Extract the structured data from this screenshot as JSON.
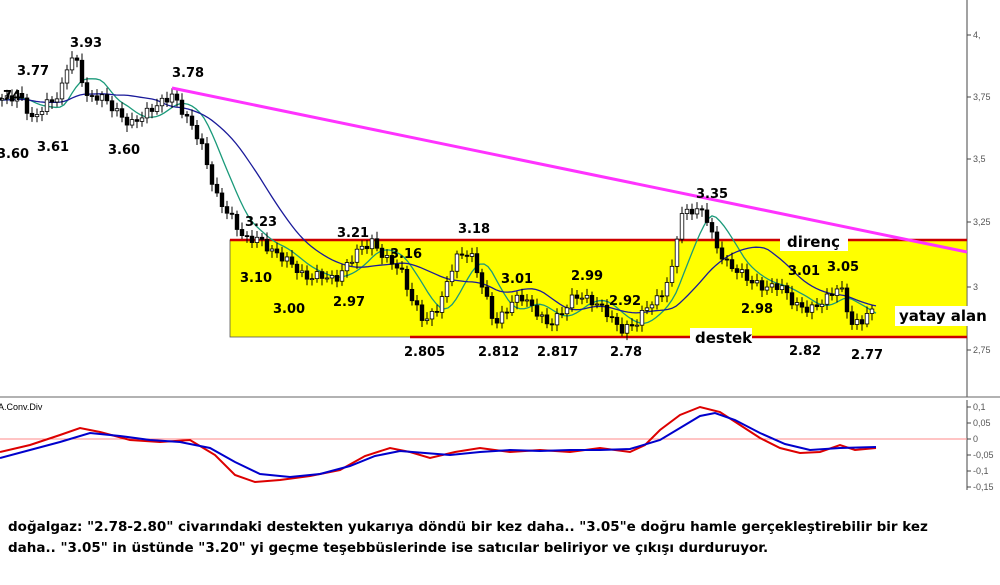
{
  "chart_data": [
    {
      "type": "candlestick",
      "title": "",
      "ylim": [
        2.7,
        4.12
      ],
      "y_ticks": [
        "4,",
        "3,75",
        "3,5",
        "3,25",
        "3",
        "2,75"
      ],
      "price_labels": [
        "3.93",
        "3.77",
        ".74",
        "3.60",
        "3.61",
        "3.60",
        "3.78",
        "3.23",
        "3.10",
        "3.00",
        "3.21",
        "2.97",
        "3.16",
        "3.18",
        "3.01",
        "2.99",
        "2.92",
        "3.35",
        "3.01",
        "3.05",
        "2.98",
        "2.805",
        "2.812",
        "2.817",
        "2.78",
        "2.82",
        "2.77"
      ],
      "resistance": {
        "label": "direnç",
        "value": 3.19
      },
      "support": {
        "label": "destek",
        "value": 2.8
      },
      "range_label": "yatay alan",
      "trendline": {
        "from": 3.78,
        "to": 3.14
      },
      "colors": {
        "zone": "#ffff00",
        "trendline": "#ff33ff",
        "level": "#cc0000",
        "ma_fast": "#1a9a7a",
        "ma_slow": "#1a1a9a"
      }
    },
    {
      "type": "line",
      "name_label": "A.Conv.Div",
      "ylim": [
        -0.16,
        0.12
      ],
      "y_ticks": [
        "0,1",
        "0,05",
        "0",
        "-0,05",
        "-0,1",
        "-0,15"
      ],
      "series_colors": [
        "#dd0000",
        "#0000cc"
      ]
    }
  ],
  "caption": {
    "line1": "doğalgaz: \"2.78-2.80\" civarındaki destekten yukarıya döndü bir kez daha.. \"3.05\"e doğru hamle gerçekleştirebilir bir kez",
    "line2": "daha.. \"3.05\" in üstünde \"3.20\" yi geçme teşebbüslerinde ise satıcılar beliriyor ve çıkışı durduruyor."
  }
}
